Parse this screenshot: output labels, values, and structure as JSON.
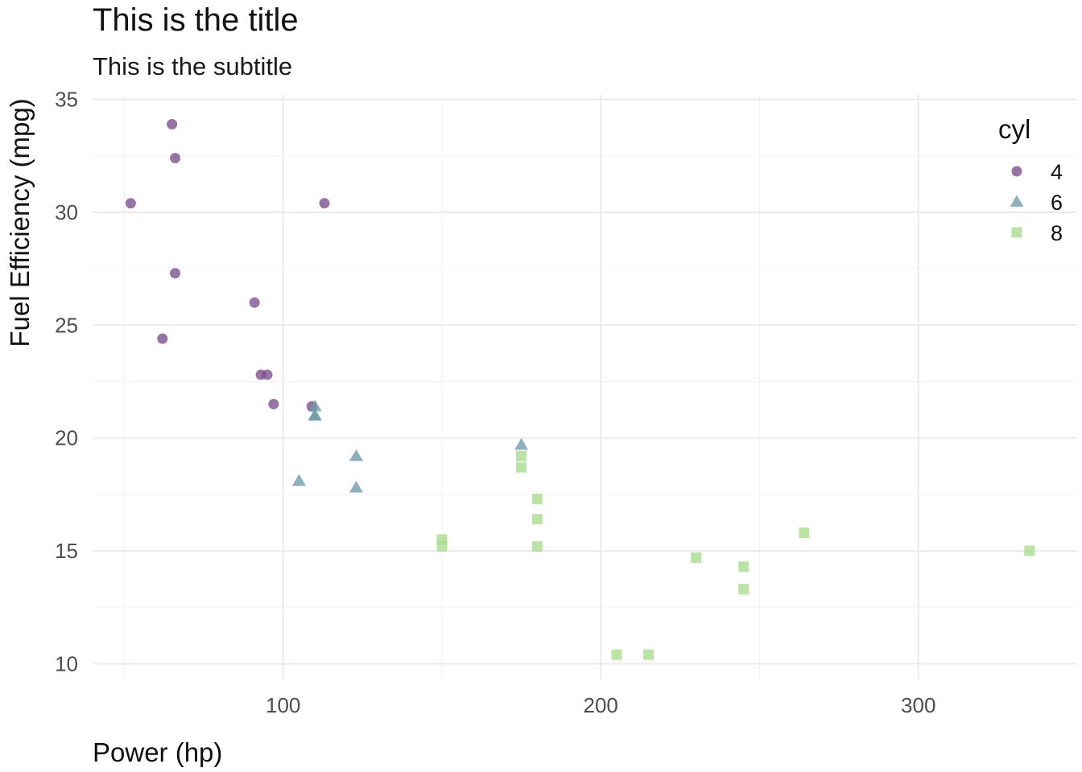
{
  "chart_data": {
    "type": "scatter",
    "title": "This is the title",
    "subtitle": "This is the subtitle",
    "xlabel": "Power (hp)",
    "ylabel": "Fuel Efficiency (mpg)",
    "xlim": [
      40,
      350
    ],
    "ylim": [
      9.3,
      35.2
    ],
    "x_ticks": [
      100,
      200,
      300
    ],
    "y_ticks": [
      10,
      15,
      20,
      25,
      30,
      35
    ],
    "x_minor_ticks": [
      50,
      150,
      250
    ],
    "y_minor_ticks": [
      12.5,
      17.5,
      22.5,
      27.5,
      32.5
    ],
    "grid": true,
    "legend": {
      "title": "cyl",
      "position": "right"
    },
    "series": [
      {
        "name": "4",
        "marker": "circle",
        "color": "#7b4b8c",
        "points": [
          [
            93,
            22.8
          ],
          [
            62,
            24.4
          ],
          [
            95,
            22.8
          ],
          [
            66,
            32.4
          ],
          [
            52,
            30.4
          ],
          [
            65,
            33.9
          ],
          [
            97,
            21.5
          ],
          [
            66,
            27.3
          ],
          [
            91,
            26.0
          ],
          [
            113,
            30.4
          ],
          [
            109,
            21.4
          ]
        ]
      },
      {
        "name": "6",
        "marker": "triangle",
        "color": "#6b9aab",
        "points": [
          [
            110,
            21.0
          ],
          [
            110,
            21.0
          ],
          [
            110,
            21.4
          ],
          [
            105,
            18.1
          ],
          [
            123,
            19.2
          ],
          [
            123,
            17.8
          ],
          [
            175,
            19.7
          ]
        ]
      },
      {
        "name": "8",
        "marker": "square",
        "color": "#a6dc8a",
        "points": [
          [
            175,
            18.7
          ],
          [
            245,
            14.3
          ],
          [
            180,
            16.4
          ],
          [
            180,
            17.3
          ],
          [
            180,
            15.2
          ],
          [
            205,
            10.4
          ],
          [
            215,
            10.4
          ],
          [
            230,
            14.7
          ],
          [
            150,
            15.5
          ],
          [
            150,
            15.2
          ],
          [
            245,
            13.3
          ],
          [
            175,
            19.2
          ],
          [
            264,
            15.8
          ],
          [
            335,
            15.0
          ]
        ]
      }
    ]
  }
}
